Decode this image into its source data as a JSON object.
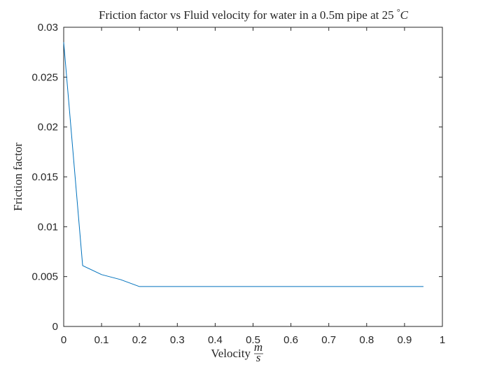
{
  "chart_data": {
    "type": "line",
    "title": "Friction factor vs Fluid velocity for water in a 0.5m pipe at 25 °C",
    "title_parts": {
      "text": "Friction factor vs Fluid velocity for water in a 0.5m pipe at 25 ",
      "degree": "°",
      "unit": "C"
    },
    "xlabel": "Velocity m/s",
    "xlabel_parts": {
      "text": "Velocity",
      "numerator": "m",
      "denominator": "s"
    },
    "ylabel": "Friction factor",
    "xlim": [
      0,
      1
    ],
    "ylim": [
      0,
      0.03
    ],
    "xticks": [
      "0",
      "0.1",
      "0.2",
      "0.3",
      "0.4",
      "0.5",
      "0.6",
      "0.7",
      "0.8",
      "0.9",
      "1"
    ],
    "yticks": [
      "0",
      "0.005",
      "0.01",
      "0.015",
      "0.02",
      "0.025",
      "0.03"
    ],
    "grid": false,
    "series": [
      {
        "color": "#0072BD",
        "x": [
          0,
          0.05,
          0.1,
          0.15,
          0.2,
          0.25,
          0.3,
          0.35,
          0.4,
          0.45,
          0.5,
          0.55,
          0.6,
          0.65,
          0.7,
          0.75,
          0.8,
          0.85,
          0.9,
          0.95
        ],
        "y": [
          0.0285,
          0.0061,
          0.0052,
          0.0047,
          0.004,
          0.004,
          0.004,
          0.004,
          0.004,
          0.004,
          0.004,
          0.004,
          0.004,
          0.004,
          0.004,
          0.004,
          0.004,
          0.004,
          0.004,
          0.004
        ]
      }
    ]
  }
}
